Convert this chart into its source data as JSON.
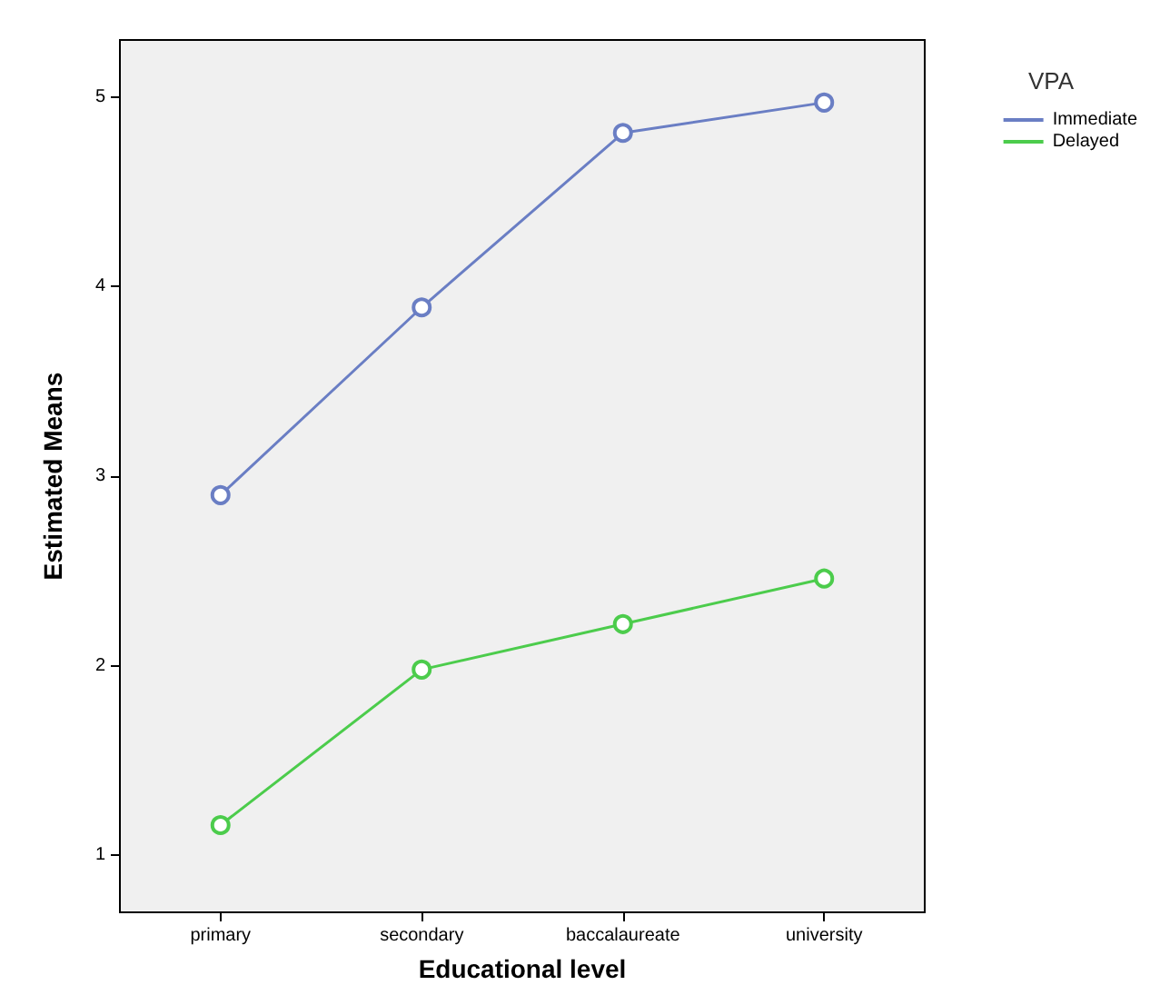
{
  "chart_data": {
    "type": "line",
    "xlabel": "Educational level",
    "ylabel": "Estimated Means",
    "legend_title": "VPA",
    "categories": [
      "primary",
      "secondary",
      "baccalaureate",
      "university"
    ],
    "series": [
      {
        "name": "Immediate",
        "color": "#6a7ec4",
        "values": [
          2.9,
          3.89,
          4.81,
          4.97
        ]
      },
      {
        "name": "Delayed",
        "color": "#4ccc4c",
        "values": [
          1.16,
          1.98,
          2.22,
          2.46
        ]
      }
    ],
    "ylim": [
      0.7,
      5.3
    ],
    "yticks": [
      1,
      2,
      3,
      4,
      5
    ],
    "grid": false,
    "legend": "top right",
    "marker": "circle",
    "line_style": "solid"
  }
}
